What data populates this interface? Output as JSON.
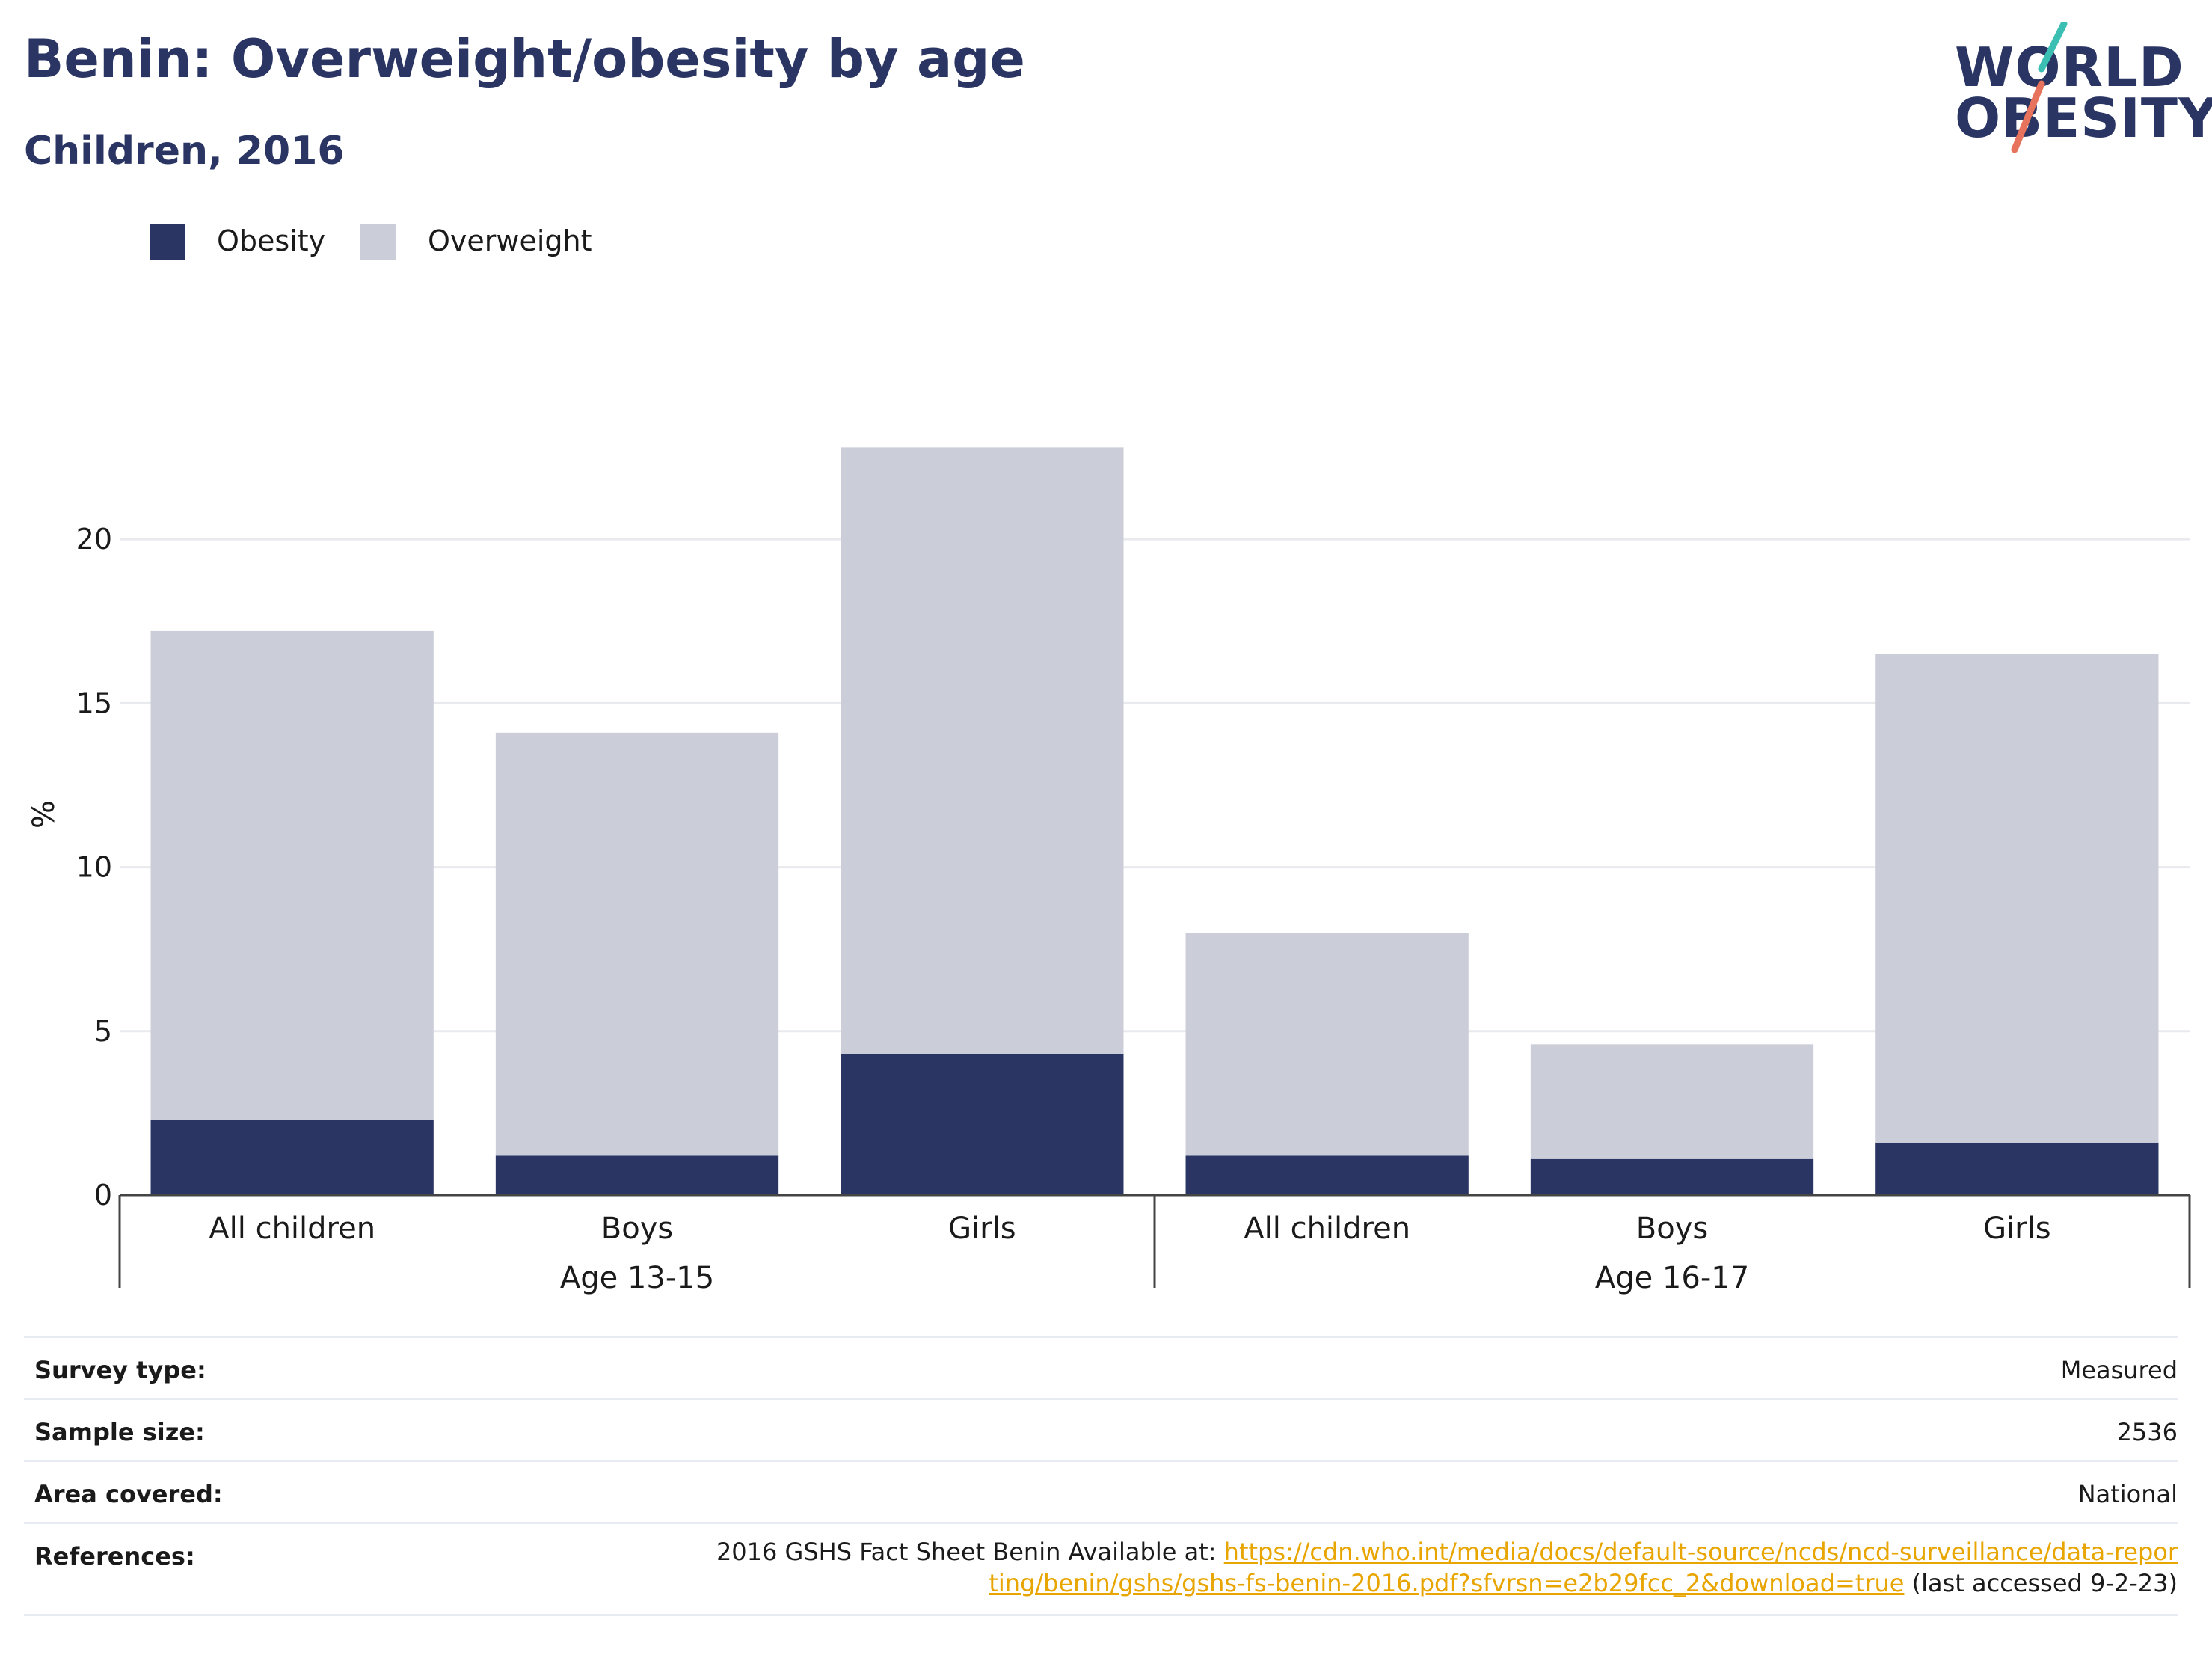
{
  "title": "Benin: Overweight/obesity by age",
  "subtitle": "Children, 2016",
  "logo": {
    "line1": "WORLD",
    "line2": "OBESITY"
  },
  "colors": {
    "obesity": "#2a3563",
    "overweight": "#cbcdd9",
    "gridline": "#e9eaee",
    "axis": "#444444",
    "link": "#e8a500",
    "logo_teal": "#3bbfb3",
    "logo_coral": "#e8735c"
  },
  "legend": [
    {
      "label": "Obesity",
      "color": "#2a3563"
    },
    {
      "label": "Overweight",
      "color": "#cbcdd9"
    }
  ],
  "chart_data": {
    "type": "bar",
    "stacked": true,
    "ylabel": "%",
    "ylim": [
      0,
      25.5
    ],
    "yticks": [
      0,
      5,
      10,
      15,
      20
    ],
    "grid": true,
    "legend_position": "top-left",
    "categories": [
      "All children",
      "Boys",
      "Girls",
      "All children",
      "Boys",
      "Girls"
    ],
    "groups": [
      {
        "label": "Age 13-15",
        "categories": [
          0,
          1,
          2
        ]
      },
      {
        "label": "Age 16-17",
        "categories": [
          3,
          4,
          5
        ]
      }
    ],
    "series": [
      {
        "name": "Obesity",
        "values": [
          2.3,
          1.2,
          4.3,
          1.2,
          1.1,
          1.6
        ]
      },
      {
        "name": "Overweight",
        "values": [
          14.9,
          12.9,
          18.5,
          6.8,
          3.5,
          14.9
        ]
      }
    ]
  },
  "table": {
    "survey_type": {
      "key": "Survey type:",
      "value": "Measured"
    },
    "sample_size": {
      "key": "Sample size:",
      "value": "2536"
    },
    "area_covered": {
      "key": "Area covered:",
      "value": "National"
    },
    "references": {
      "key": "References:",
      "prefix": "2016 GSHS Fact Sheet Benin Available at: ",
      "link": "https://cdn.who.int/media/docs/default-source/ncds/ncd-surveillance/data-reporting/benin/gshs/gshs-fs-benin-2016.pdf?sfvrsn=e2b29fcc_2&download=true",
      "suffix": " (last accessed 9-2-23)"
    }
  }
}
